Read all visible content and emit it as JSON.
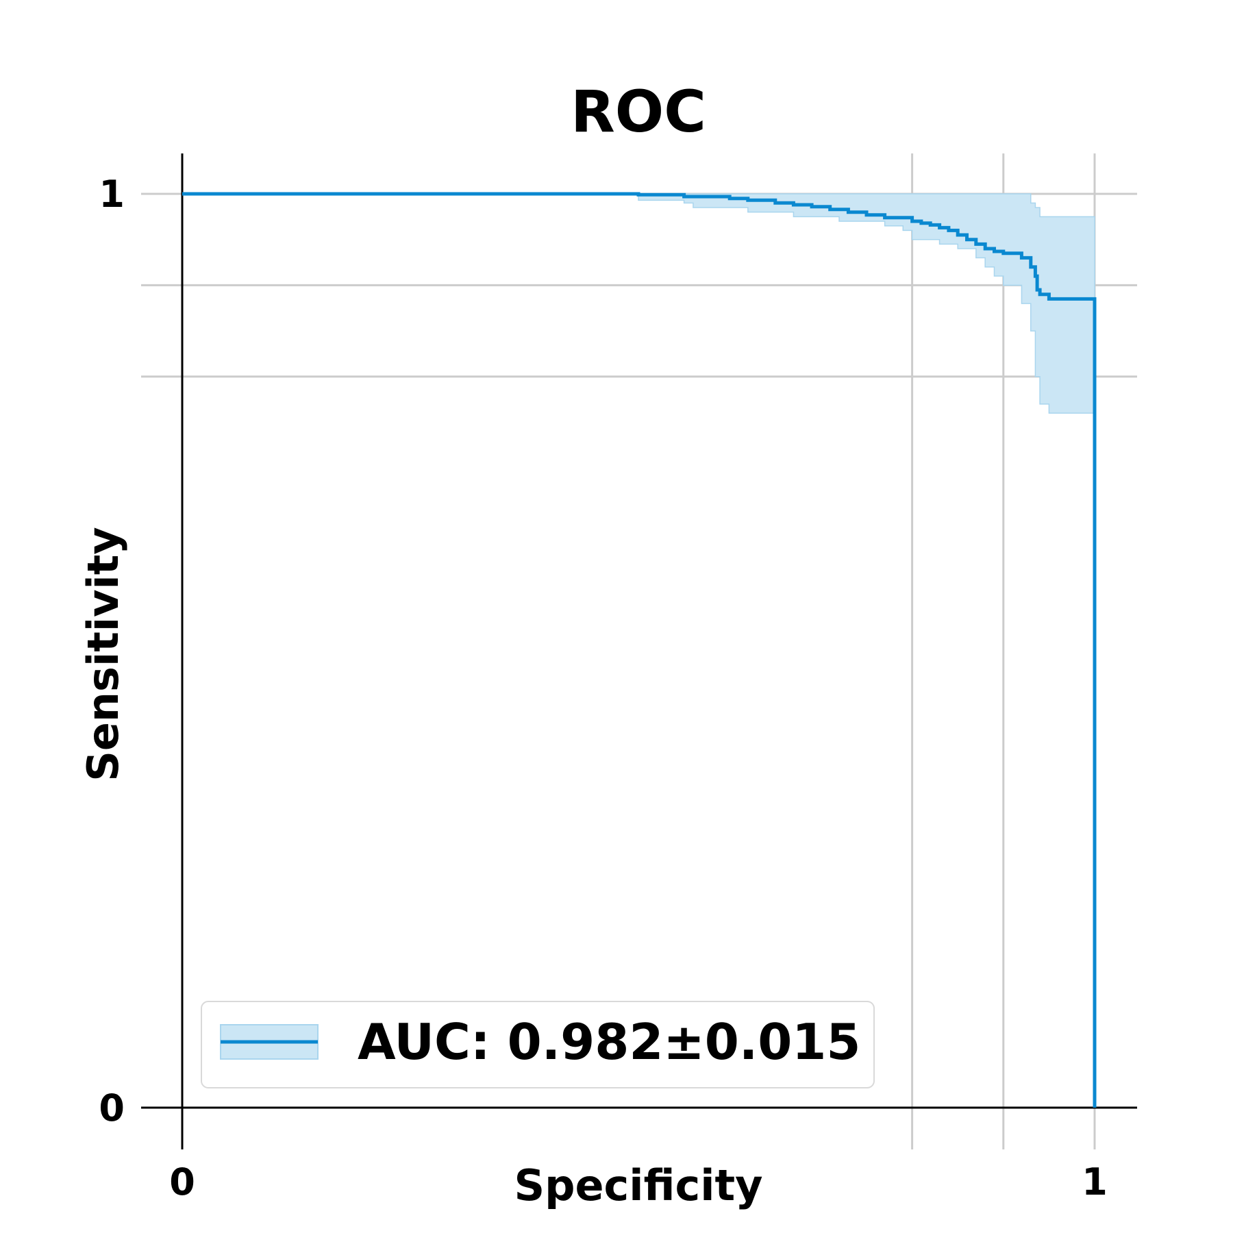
{
  "chart_data": {
    "type": "line",
    "title": "ROC",
    "xlabel": "Specificity",
    "ylabel": "Sensitivity",
    "xlim": [
      0,
      1
    ],
    "ylim": [
      0,
      1
    ],
    "x_inverted": false,
    "x_ticks": [
      {
        "value": 0,
        "label": "0"
      },
      {
        "value": 1,
        "label": "1"
      }
    ],
    "y_ticks": [
      {
        "value": 0,
        "label": "0"
      },
      {
        "value": 1,
        "label": "1"
      }
    ],
    "x_grid": [
      0.8,
      0.9,
      1.0
    ],
    "y_grid": [
      1.0,
      0.9,
      0.8
    ],
    "grid": true,
    "legend": {
      "position": "lower-left",
      "entries": [
        "AUC: 0.982±0.015"
      ]
    },
    "colors": {
      "line": "#0a88d0",
      "band": "#cbe6f5",
      "band_edge": "#a9d5ee",
      "grid": "#cccccc"
    },
    "series": [
      {
        "name": "AUC: 0.982±0.015",
        "x": [
          0.0,
          0.5,
          0.5,
          0.55,
          0.55,
          0.6,
          0.6,
          0.62,
          0.62,
          0.65,
          0.65,
          0.67,
          0.67,
          0.69,
          0.69,
          0.71,
          0.71,
          0.73,
          0.73,
          0.75,
          0.75,
          0.77,
          0.77,
          0.8,
          0.8,
          0.81,
          0.81,
          0.82,
          0.82,
          0.83,
          0.83,
          0.84,
          0.84,
          0.85,
          0.85,
          0.86,
          0.86,
          0.87,
          0.87,
          0.88,
          0.88,
          0.89,
          0.89,
          0.9,
          0.9,
          0.92,
          0.92,
          0.93,
          0.93,
          0.935,
          0.935,
          0.937,
          0.937,
          0.94,
          0.94,
          0.95,
          0.95,
          1.0,
          1.0
        ],
        "y": [
          1.0,
          1.0,
          0.999,
          0.999,
          0.997,
          0.997,
          0.995,
          0.995,
          0.993,
          0.993,
          0.99,
          0.99,
          0.988,
          0.988,
          0.986,
          0.986,
          0.983,
          0.983,
          0.98,
          0.98,
          0.977,
          0.977,
          0.974,
          0.974,
          0.97,
          0.97,
          0.968,
          0.968,
          0.966,
          0.966,
          0.963,
          0.963,
          0.96,
          0.96,
          0.955,
          0.955,
          0.95,
          0.95,
          0.945,
          0.945,
          0.94,
          0.94,
          0.937,
          0.937,
          0.935,
          0.935,
          0.93,
          0.93,
          0.92,
          0.92,
          0.91,
          0.91,
          0.895,
          0.895,
          0.89,
          0.89,
          0.885,
          0.885,
          0.0
        ]
      }
    ],
    "confidence_band": {
      "x": [
        0.5,
        0.55,
        0.55,
        0.56,
        0.56,
        0.62,
        0.62,
        0.67,
        0.67,
        0.72,
        0.72,
        0.77,
        0.77,
        0.79,
        0.79,
        0.8,
        0.8,
        0.83,
        0.83,
        0.85,
        0.85,
        0.87,
        0.87,
        0.88,
        0.88,
        0.89,
        0.89,
        0.9,
        0.9,
        0.92,
        0.92,
        0.93,
        0.93,
        0.935,
        0.935,
        0.94,
        0.94,
        0.95,
        0.95,
        1.0
      ],
      "lower": [
        0.993,
        0.993,
        0.99,
        0.99,
        0.985,
        0.985,
        0.98,
        0.98,
        0.975,
        0.975,
        0.97,
        0.97,
        0.965,
        0.965,
        0.96,
        0.96,
        0.95,
        0.95,
        0.945,
        0.945,
        0.94,
        0.94,
        0.93,
        0.93,
        0.92,
        0.92,
        0.91,
        0.91,
        0.9,
        0.9,
        0.88,
        0.88,
        0.85,
        0.85,
        0.8,
        0.8,
        0.77,
        0.77,
        0.76,
        0.76
      ],
      "upper": [
        1.0,
        1.0,
        1.0,
        1.0,
        1.0,
        1.0,
        1.0,
        1.0,
        1.0,
        1.0,
        1.0,
        1.0,
        1.0,
        1.0,
        1.0,
        1.0,
        1.0,
        1.0,
        1.0,
        1.0,
        1.0,
        1.0,
        1.0,
        1.0,
        1.0,
        1.0,
        1.0,
        1.0,
        1.0,
        1.0,
        1.0,
        1.0,
        0.99,
        0.99,
        0.985,
        0.985,
        0.975,
        0.975,
        0.975,
        0.975
      ]
    }
  }
}
